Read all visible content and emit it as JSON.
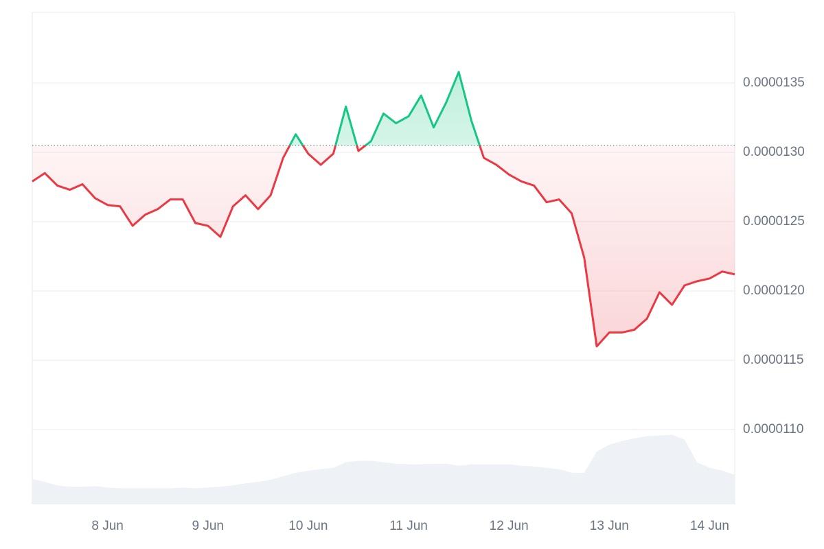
{
  "chart_data": {
    "type": "line",
    "baseline": 1.305e-05,
    "x": [
      7.25,
      7.375,
      7.5,
      7.625,
      7.75,
      7.875,
      8.0,
      8.125,
      8.25,
      8.375,
      8.5,
      8.625,
      8.75,
      8.875,
      9.0,
      9.125,
      9.25,
      9.375,
      9.5,
      9.625,
      9.75,
      9.875,
      10.0,
      10.125,
      10.25,
      10.375,
      10.5,
      10.625,
      10.75,
      10.875,
      11.0,
      11.125,
      11.25,
      11.375,
      11.5,
      11.625,
      11.75,
      11.875,
      12.0,
      12.125,
      12.25,
      12.375,
      12.5,
      12.625,
      12.75,
      12.875,
      13.0,
      13.125,
      13.25,
      13.375,
      13.5,
      13.625,
      13.75,
      13.875,
      14.0,
      14.125,
      14.25
    ],
    "series": [
      {
        "color": "#ea3943",
        "up_color": "#16c784",
        "values": [
          1.279e-05,
          1.285e-05,
          1.276e-05,
          1.273e-05,
          1.277e-05,
          1.267e-05,
          1.262e-05,
          1.261e-05,
          1.247e-05,
          1.255e-05,
          1.259e-05,
          1.266e-05,
          1.266e-05,
          1.249e-05,
          1.247e-05,
          1.239e-05,
          1.261e-05,
          1.269e-05,
          1.259e-05,
          1.269e-05,
          1.296e-05,
          1.313e-05,
          1.299e-05,
          1.291e-05,
          1.299e-05,
          1.333e-05,
          1.301e-05,
          1.308e-05,
          1.328e-05,
          1.321e-05,
          1.326e-05,
          1.341e-05,
          1.318e-05,
          1.336e-05,
          1.358e-05,
          1.323e-05,
          1.296e-05,
          1.291e-05,
          1.284e-05,
          1.279e-05,
          1.276e-05,
          1.264e-05,
          1.266e-05,
          1.256e-05,
          1.224e-05,
          1.16e-05,
          1.17e-05,
          1.17e-05,
          1.172e-05,
          1.18e-05,
          1.199e-05,
          1.19e-05,
          1.204e-05,
          1.207e-05,
          1.209e-05,
          1.214e-05,
          1.212e-05
        ]
      },
      {
        "axis": "y2",
        "color": "#eef1f5",
        "values": [
          36,
          32,
          27,
          25,
          25,
          26,
          24,
          23,
          23,
          23,
          23,
          23,
          24,
          23,
          24,
          25,
          27,
          30,
          32,
          35,
          40,
          45,
          48,
          50,
          52,
          60,
          62,
          62,
          60,
          58,
          57,
          57,
          58,
          58,
          55,
          57,
          57,
          57,
          57,
          55,
          54,
          52,
          50,
          45,
          45,
          75,
          85,
          90,
          94,
          97,
          98,
          99,
          92,
          60,
          52,
          48,
          42
        ]
      }
    ],
    "xlim": [
      7.25,
      14.25
    ],
    "xticks": [
      {
        "value": 8,
        "label": "8 Jun"
      },
      {
        "value": 9,
        "label": "9 Jun"
      },
      {
        "value": 10,
        "label": "10 Jun"
      },
      {
        "value": 11,
        "label": "11 Jun"
      },
      {
        "value": 12,
        "label": "12 Jun"
      },
      {
        "value": 13,
        "label": "13 Jun"
      },
      {
        "value": 14,
        "label": "14 Jun"
      }
    ],
    "ylim": [
      1.046e-05,
      1.401e-05
    ],
    "yticks": [
      {
        "value": 1.1e-05,
        "label": "0.0000110"
      },
      1.15e-05,
      {
        "value": 1.2e-05,
        "label": "0.0000120"
      },
      1.25e-05,
      {
        "value": 1.3e-05,
        "label": "0.0000130"
      },
      1.35e-05
    ],
    "y2lim": [
      0,
      700
    ],
    "grid": true
  }
}
